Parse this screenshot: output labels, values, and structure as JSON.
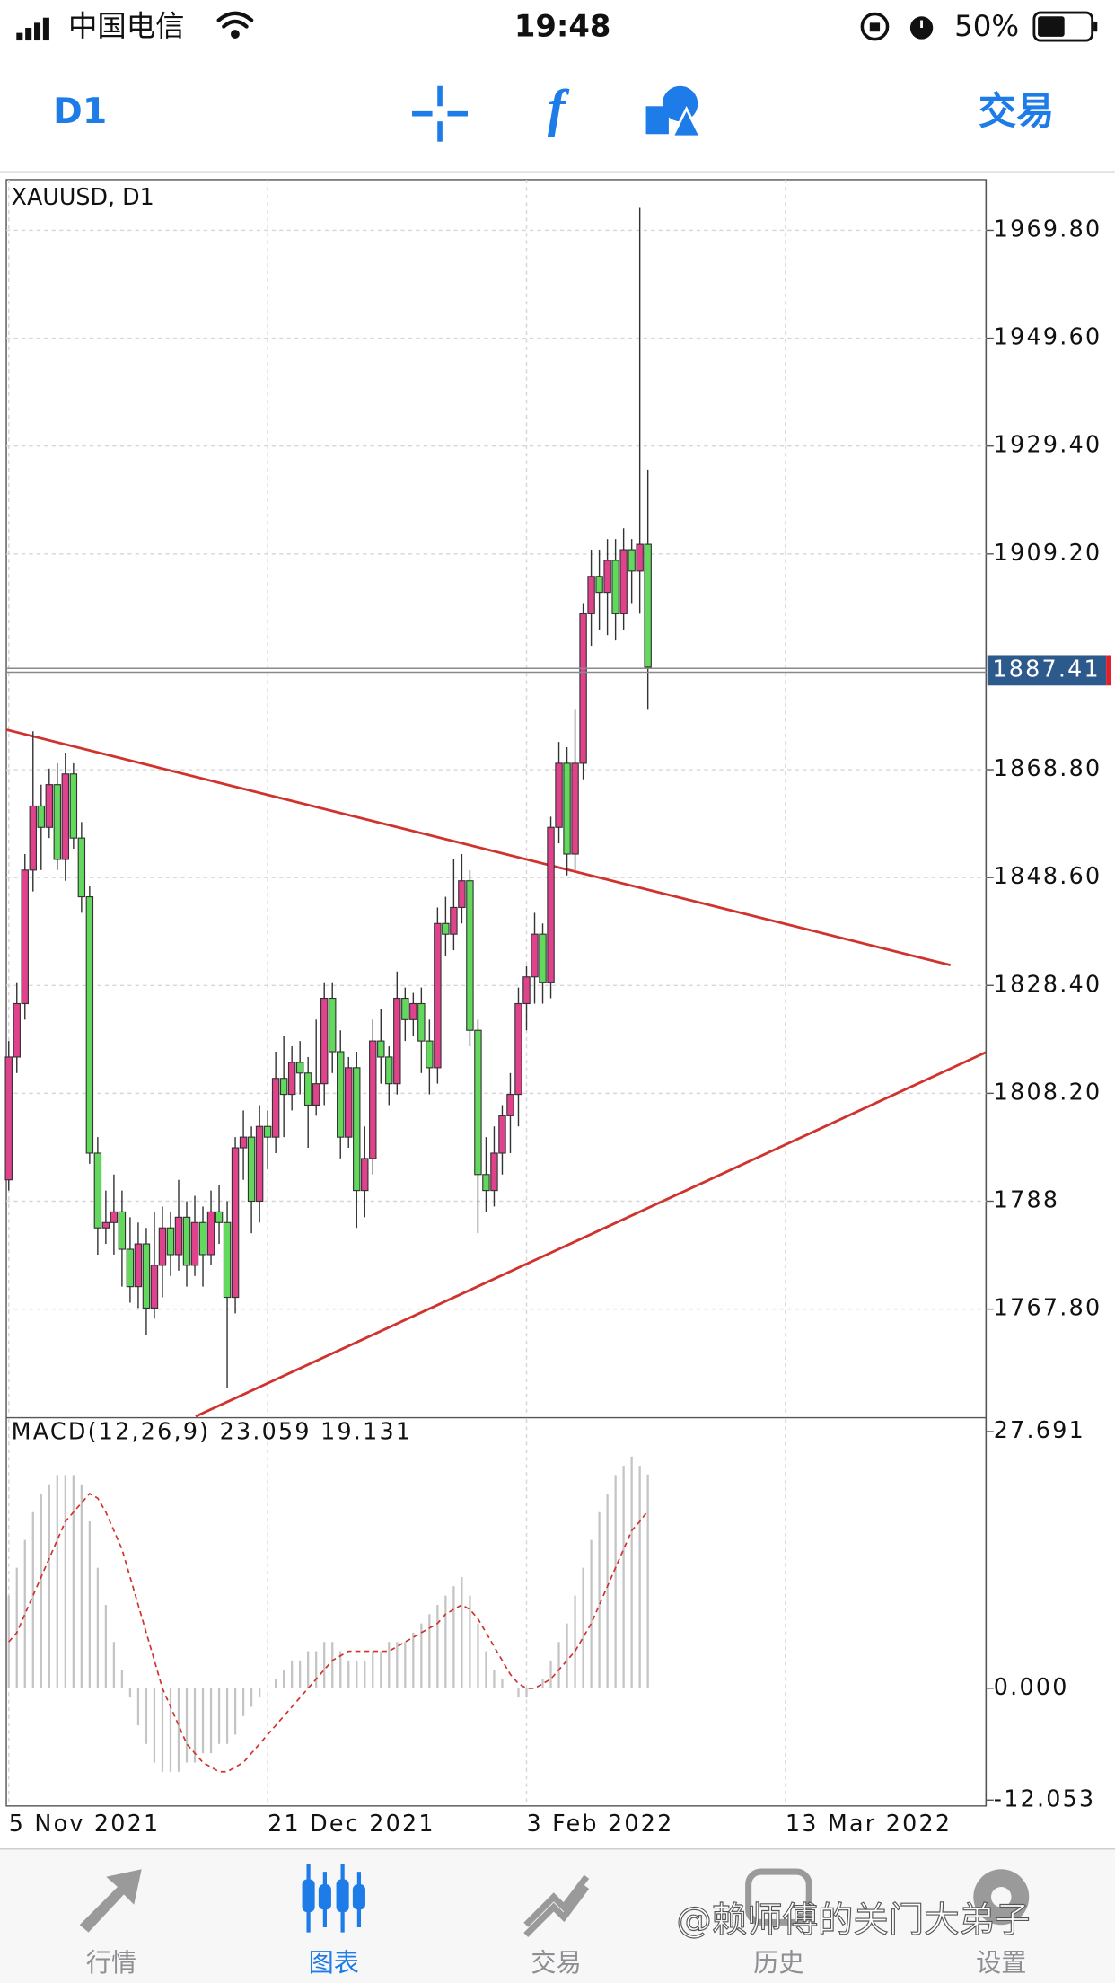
{
  "status_bar": {
    "carrier": "中国电信",
    "time": "19:48",
    "battery": "50%"
  },
  "toolbar": {
    "timeframe": "D1",
    "trade": "交易"
  },
  "chart_data": [
    {
      "type": "candlestick",
      "title": "XAUUSD, D1",
      "x": [
        0,
        1,
        2,
        3,
        4,
        5,
        6,
        7,
        8,
        9,
        10,
        11,
        12,
        13,
        14,
        15,
        16,
        17,
        18,
        19,
        20,
        21,
        22,
        23,
        24,
        25,
        26,
        27,
        28,
        29,
        30,
        31,
        32,
        33,
        34,
        35,
        36,
        37,
        38,
        39,
        40,
        41,
        42,
        43,
        44,
        45,
        46,
        47,
        48,
        49,
        50,
        51,
        52,
        53,
        54,
        55,
        56,
        57,
        58,
        59,
        60,
        61,
        62,
        63,
        64,
        65,
        66,
        67,
        68,
        69,
        70,
        71,
        72,
        73,
        74,
        75,
        76,
        77,
        78,
        79
      ],
      "open": [
        1792,
        1815,
        1825,
        1850,
        1862,
        1858,
        1866,
        1852,
        1868,
        1856,
        1845,
        1797,
        1783,
        1784,
        1786,
        1779,
        1772,
        1780,
        1768,
        1776,
        1783,
        1778,
        1785,
        1776,
        1784,
        1778,
        1786,
        1784,
        1770,
        1798,
        1800,
        1788,
        1802,
        1800,
        1811,
        1808,
        1814,
        1812,
        1806,
        1810,
        1826,
        1816,
        1800,
        1813,
        1790,
        1796,
        1818,
        1815,
        1810,
        1826,
        1822,
        1825,
        1818,
        1813,
        1840,
        1838,
        1843,
        1848,
        1820,
        1793,
        1790,
        1797,
        1804,
        1808,
        1825,
        1830,
        1838,
        1829,
        1858,
        1870,
        1853,
        1870,
        1898,
        1905,
        1902,
        1908,
        1898,
        1910,
        1906,
        1911
      ],
      "high": [
        1818,
        1829,
        1853,
        1876,
        1866,
        1869,
        1870,
        1872,
        1870,
        1859,
        1847,
        1800,
        1790,
        1793,
        1790,
        1785,
        1784,
        1783,
        1786,
        1787,
        1786,
        1792,
        1788,
        1789,
        1787,
        1790,
        1791,
        1788,
        1800,
        1805,
        1802,
        1806,
        1805,
        1816,
        1819,
        1817,
        1818,
        1815,
        1822,
        1829,
        1829,
        1820,
        1815,
        1816,
        1802,
        1822,
        1824,
        1817,
        1831,
        1828,
        1827,
        1828,
        1822,
        1843,
        1845,
        1852,
        1853,
        1850,
        1822,
        1800,
        1802,
        1806,
        1812,
        1828,
        1832,
        1842,
        1840,
        1860,
        1874,
        1873,
        1880,
        1900,
        1910,
        1910,
        1912,
        1912,
        1914,
        1912,
        1974,
        1925
      ],
      "low": [
        1790,
        1812,
        1822,
        1846,
        1850,
        1856,
        1850,
        1848,
        1854,
        1842,
        1795,
        1778,
        1780,
        1778,
        1772,
        1769,
        1768,
        1763,
        1766,
        1770,
        1774,
        1775,
        1772,
        1774,
        1772,
        1776,
        1780,
        1753,
        1767,
        1792,
        1782,
        1784,
        1794,
        1797,
        1800,
        1805,
        1808,
        1798,
        1804,
        1806,
        1812,
        1796,
        1798,
        1783,
        1785,
        1793,
        1810,
        1806,
        1808,
        1818,
        1819,
        1812,
        1808,
        1810,
        1834,
        1835,
        1840,
        1817,
        1782,
        1786,
        1787,
        1793,
        1797,
        1802,
        1820,
        1825,
        1825,
        1826,
        1855,
        1849,
        1850,
        1867,
        1892,
        1895,
        1894,
        1893,
        1895,
        1900,
        1898,
        1880
      ],
      "close": [
        1815,
        1825,
        1850,
        1862,
        1858,
        1866,
        1852,
        1868,
        1856,
        1845,
        1797,
        1783,
        1784,
        1786,
        1779,
        1772,
        1780,
        1768,
        1776,
        1783,
        1778,
        1785,
        1776,
        1784,
        1778,
        1786,
        1784,
        1770,
        1798,
        1800,
        1788,
        1802,
        1800,
        1811,
        1808,
        1814,
        1812,
        1806,
        1810,
        1826,
        1816,
        1800,
        1813,
        1790,
        1796,
        1818,
        1815,
        1810,
        1826,
        1822,
        1825,
        1818,
        1813,
        1840,
        1838,
        1843,
        1848,
        1820,
        1793,
        1790,
        1797,
        1804,
        1808,
        1825,
        1830,
        1838,
        1829,
        1858,
        1870,
        1853,
        1870,
        1898,
        1905,
        1902,
        1908,
        1898,
        1910,
        1906,
        1911,
        1888
      ],
      "up_color": "#e0428c",
      "down_color": "#62d95c",
      "xlim": [
        -0.3,
        120.8
      ],
      "xticks": [
        {
          "value": 0,
          "label": "5 Nov 2021"
        },
        {
          "value": 32,
          "label": "21 Dec 2021"
        },
        {
          "value": 64,
          "label": "3 Feb 2022"
        },
        {
          "value": 96,
          "label": "13 Mar 2022"
        }
      ],
      "ylim": [
        1747.7,
        1979.3
      ],
      "yticks": [
        {
          "value": 1767.8,
          "label": "1767.80"
        },
        1788.0,
        {
          "value": 1808.2,
          "label": "1808.20"
        },
        {
          "value": 1828.4,
          "label": "1828.40"
        },
        {
          "value": 1848.6,
          "label": "1848.60"
        },
        {
          "value": 1868.8,
          "label": "1868.80"
        },
        {
          "value": 1909.2,
          "label": "1909.20"
        },
        {
          "value": 1929.4,
          "label": "1929.40"
        },
        {
          "value": 1949.6,
          "label": "1949.60"
        },
        {
          "value": 1969.8,
          "label": "1969.80"
        }
      ],
      "grid": true,
      "last_price": 1887.41,
      "trendlines": [
        {
          "x": [
            -0.3,
            116.4
          ],
          "y": [
            1876.3,
            1832.2
          ]
        },
        {
          "x": [
            23.1,
            120.8
          ],
          "y": [
            1747.7,
            1815.9
          ]
        }
      ],
      "trendline_color": "#d0332e"
    },
    {
      "type": "macd",
      "title": "MACD(12,26,9) 23.059 19.131",
      "histogram": {
        "color": "#c4c4c4",
        "values": [
          10,
          13,
          16,
          19,
          21,
          22,
          23,
          23,
          23,
          22,
          18,
          13,
          9,
          5,
          2,
          -1,
          -4,
          -6,
          -8,
          -9,
          -9,
          -9,
          -8,
          -8,
          -7,
          -7,
          -6,
          -6,
          -5,
          -3,
          -2,
          -1,
          0,
          1,
          2,
          3,
          3,
          4,
          4,
          5,
          5,
          4,
          3,
          3,
          3,
          4,
          4,
          5,
          5,
          5,
          6,
          7,
          8,
          9,
          10,
          11,
          12,
          10,
          7,
          4,
          2,
          1,
          0,
          -1,
          -1,
          0,
          1,
          3,
          5,
          7,
          10,
          13,
          16,
          19,
          21,
          23,
          24,
          25,
          24,
          23.059
        ]
      },
      "signal": {
        "color": "#d0332e",
        "values": [
          5,
          6,
          8,
          10,
          12,
          14,
          16,
          18,
          19,
          20,
          21,
          20.5,
          19,
          17,
          15,
          12,
          9,
          6,
          3,
          0,
          -2,
          -4,
          -6,
          -7,
          -8,
          -8.5,
          -9,
          -9,
          -8.5,
          -8,
          -7,
          -6,
          -5,
          -4,
          -3,
          -2,
          -1,
          0,
          1,
          2,
          3,
          3.5,
          4,
          4,
          4,
          4,
          4,
          4,
          4.5,
          5,
          5.5,
          6,
          6.5,
          7,
          8,
          8.5,
          9,
          8.5,
          7.5,
          6,
          4.5,
          3,
          1.5,
          0.5,
          0,
          0,
          0.5,
          1,
          2,
          3,
          4,
          5.5,
          7,
          9,
          11,
          13,
          15,
          17,
          18,
          19.131
        ]
      },
      "ylim": [
        -12.69,
        29.05
      ],
      "yticks": [
        27.691,
        {
          "value": 0,
          "label": "0.000"
        },
        -12.053
      ]
    }
  ],
  "tabs": [
    "行情",
    "图表",
    "交易",
    "历史",
    "设置"
  ],
  "active_tab": 1,
  "watermark": "@赖师傅的关门大弟子"
}
